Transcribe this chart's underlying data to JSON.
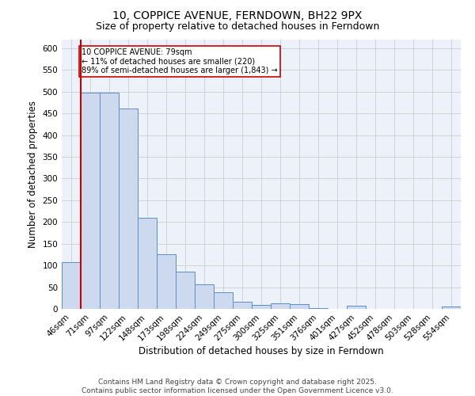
{
  "title": "10, COPPICE AVENUE, FERNDOWN, BH22 9PX",
  "subtitle": "Size of property relative to detached houses in Ferndown",
  "xlabel": "Distribution of detached houses by size in Ferndown",
  "ylabel": "Number of detached properties",
  "bar_labels": [
    "46sqm",
    "71sqm",
    "97sqm",
    "122sqm",
    "148sqm",
    "173sqm",
    "198sqm",
    "224sqm",
    "249sqm",
    "275sqm",
    "300sqm",
    "325sqm",
    "351sqm",
    "376sqm",
    "401sqm",
    "427sqm",
    "452sqm",
    "478sqm",
    "503sqm",
    "528sqm",
    "554sqm"
  ],
  "bar_values": [
    107,
    497,
    497,
    462,
    209,
    125,
    85,
    57,
    38,
    16,
    10,
    12,
    11,
    2,
    0,
    7,
    0,
    0,
    0,
    0,
    6
  ],
  "bar_color": "#ccd9ee",
  "bar_edge_color": "#5b8ec4",
  "red_line_color": "#cc0000",
  "annotation_text": "10 COPPICE AVENUE: 79sqm\n← 11% of detached houses are smaller (220)\n89% of semi-detached houses are larger (1,843) →",
  "annotation_box_color": "#ffffff",
  "annotation_box_edge_color": "#cc0000",
  "ylim": [
    0,
    620
  ],
  "yticks": [
    0,
    50,
    100,
    150,
    200,
    250,
    300,
    350,
    400,
    450,
    500,
    550,
    600
  ],
  "grid_color": "#cccccc",
  "bg_color": "#edf2fa",
  "footer_line1": "Contains HM Land Registry data © Crown copyright and database right 2025.",
  "footer_line2": "Contains public sector information licensed under the Open Government Licence v3.0.",
  "title_fontsize": 10,
  "subtitle_fontsize": 9,
  "axis_label_fontsize": 8.5,
  "tick_fontsize": 7.5,
  "footer_fontsize": 6.5
}
